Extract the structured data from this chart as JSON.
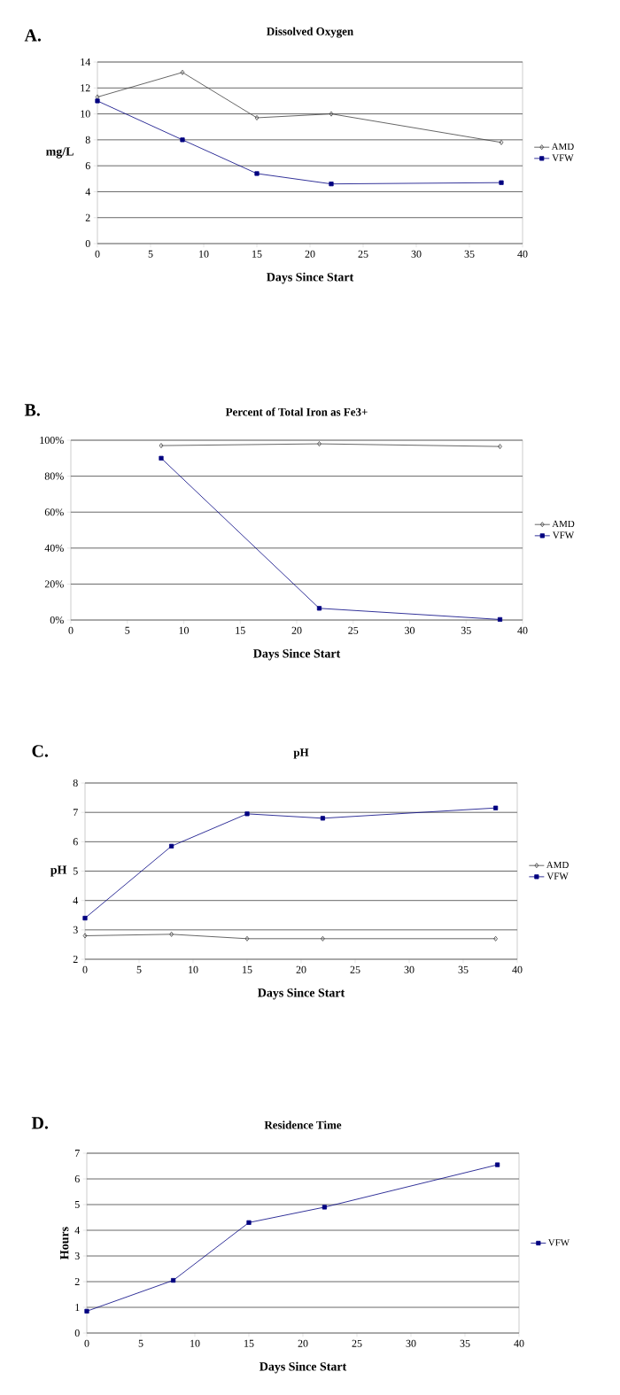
{
  "chart_data": [
    {
      "type": "line",
      "title": "Dissolved Oxygen",
      "xlabel": "Days Since Start",
      "ylabel": "mg/L",
      "annotations": [
        "A."
      ],
      "x": [
        0,
        8,
        15,
        22,
        38
      ],
      "series": [
        {
          "name": "AMD",
          "color": "#404040",
          "marker": "diamond",
          "values": [
            11.3,
            13.2,
            9.7,
            10.0,
            7.8
          ]
        },
        {
          "name": "VFW",
          "color": "#000080",
          "marker": "square",
          "values": [
            11.0,
            8.0,
            5.4,
            4.6,
            4.7
          ]
        }
      ],
      "xlim": [
        0,
        40
      ],
      "ylim": [
        0,
        14
      ],
      "xticks": [
        0,
        5,
        10,
        15,
        20,
        25,
        30,
        35,
        40
      ],
      "yticks": [
        0,
        2,
        4,
        6,
        8,
        10,
        12,
        14
      ],
      "grid": "y",
      "legend": "right"
    },
    {
      "type": "line",
      "title": "Percent of Total Iron as Fe3+",
      "xlabel": "Days Since Start",
      "annotations": [
        "B."
      ],
      "x": [
        8,
        22,
        38
      ],
      "series": [
        {
          "name": "AMD",
          "color": "#404040",
          "marker": "diamond",
          "values": [
            97,
            98,
            96.5
          ]
        },
        {
          "name": "VFW",
          "color": "#000080",
          "marker": "square",
          "values": [
            90,
            6.5,
            0.3
          ]
        }
      ],
      "xlim": [
        0,
        40
      ],
      "ylim": [
        0,
        100
      ],
      "xticks": [
        0,
        5,
        10,
        15,
        20,
        25,
        30,
        35,
        40
      ],
      "yticks": [
        {
          "value": 0,
          "label": "0%"
        },
        {
          "value": 20,
          "label": "20%"
        },
        {
          "value": 40,
          "label": "40%"
        },
        {
          "value": 60,
          "label": "60%"
        },
        {
          "value": 80,
          "label": "80%"
        },
        {
          "value": 100,
          "label": "100%"
        }
      ],
      "grid": "y",
      "legend": "right"
    },
    {
      "type": "line",
      "title": "pH",
      "xlabel": "Days Since Start",
      "ylabel": "pH",
      "annotations": [
        "C."
      ],
      "x": [
        0,
        8,
        15,
        22,
        38
      ],
      "series": [
        {
          "name": "AMD",
          "color": "#404040",
          "marker": "diamond",
          "values": [
            2.8,
            2.85,
            2.7,
            2.7,
            2.7
          ]
        },
        {
          "name": "VFW",
          "color": "#000080",
          "marker": "square",
          "values": [
            3.4,
            5.85,
            6.95,
            6.8,
            7.15
          ]
        }
      ],
      "xlim": [
        0,
        40
      ],
      "ylim": [
        2,
        8
      ],
      "xticks": [
        0,
        5,
        10,
        15,
        20,
        25,
        30,
        35,
        40
      ],
      "yticks": [
        2,
        3,
        4,
        5,
        6,
        7,
        8
      ],
      "grid": "y",
      "legend": "right"
    },
    {
      "type": "line",
      "title": "Residence Time",
      "xlabel": "Days Since Start",
      "ylabel": "Hours",
      "annotations": [
        "D."
      ],
      "x": [
        0,
        8,
        15,
        22,
        38
      ],
      "series": [
        {
          "name": "VFW",
          "color": "#000080",
          "marker": "square",
          "values": [
            0.85,
            2.05,
            4.3,
            4.9,
            6.55
          ]
        }
      ],
      "xlim": [
        0,
        40
      ],
      "ylim": [
        0,
        7
      ],
      "xticks": [
        0,
        5,
        10,
        15,
        20,
        25,
        30,
        35,
        40
      ],
      "yticks": [
        0,
        1,
        2,
        3,
        4,
        5,
        6,
        7
      ],
      "grid": "y",
      "legend": "right"
    }
  ]
}
